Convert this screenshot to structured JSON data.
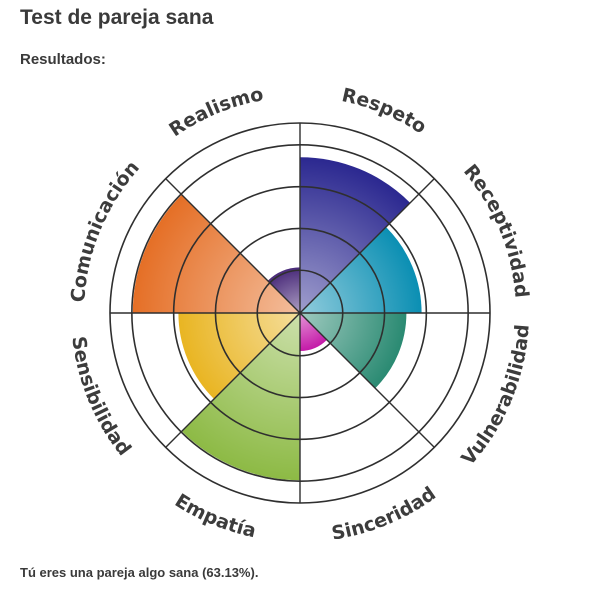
{
  "page": {
    "title": "Test de pareja sana",
    "results_label": "Resultados:",
    "result_text": "Tú eres una pareja algo sana (63.13%)."
  },
  "chart_data": {
    "type": "polar-area",
    "scale_max": 5,
    "categories": [
      "Respeto",
      "Receptividad",
      "Vulnerabilidad",
      "Sinceridad",
      "Empatía",
      "Sensibilidad",
      "Comunicación",
      "Realismo"
    ],
    "values": [
      4.1,
      3.2,
      2.8,
      1.0,
      4.4,
      3.2,
      4.4,
      1.2
    ],
    "colors": [
      "#2b2890",
      "#0b8fb3",
      "#2a8a72",
      "#c41aa8",
      "#8dba45",
      "#e9b522",
      "#e56f26",
      "#4a2b7a"
    ],
    "grid": true
  }
}
